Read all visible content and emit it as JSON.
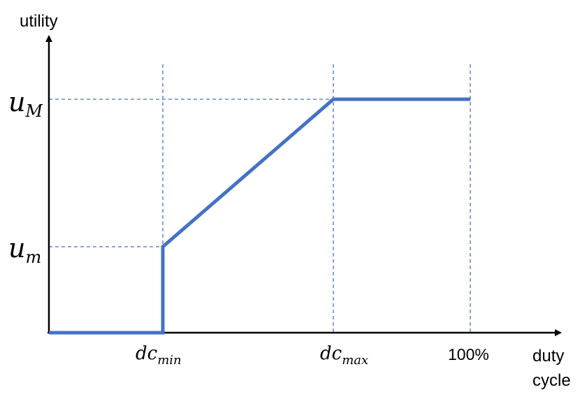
{
  "axes": {
    "y_label": "utility",
    "x_label_line1": "duty",
    "x_label_line2": "cycle"
  },
  "y_ticks": [
    {
      "base": "u",
      "sub": "M"
    },
    {
      "base": "u",
      "sub": "m"
    }
  ],
  "x_ticks": [
    {
      "base": "dc",
      "sub": "min"
    },
    {
      "base": "dc",
      "sub": "max"
    },
    {
      "text": "100%"
    }
  ],
  "colors": {
    "curve": "#4472C4",
    "guides": "#4472C4",
    "axes": "#000000"
  }
}
